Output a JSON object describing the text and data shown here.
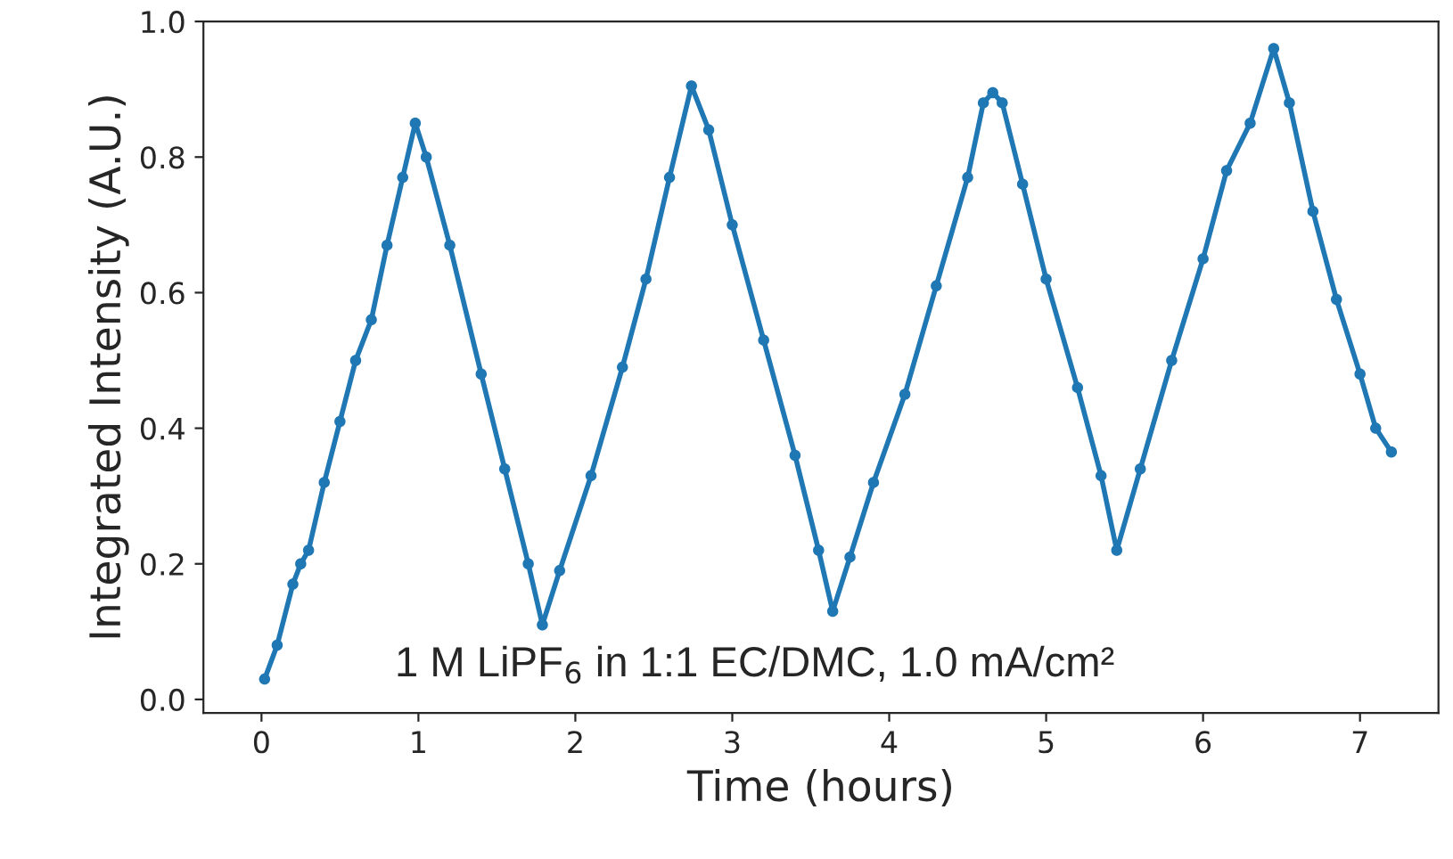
{
  "chart_data": {
    "type": "line",
    "xlabel": "Time (hours)",
    "ylabel": "Integrated Intensity (A.U.)",
    "x": [
      0.02,
      0.1,
      0.2,
      0.25,
      0.3,
      0.4,
      0.5,
      0.6,
      0.7,
      0.8,
      0.9,
      0.98,
      1.05,
      1.2,
      1.4,
      1.55,
      1.7,
      1.79,
      1.9,
      2.1,
      2.3,
      2.45,
      2.6,
      2.74,
      2.85,
      3.0,
      3.2,
      3.4,
      3.55,
      3.64,
      3.75,
      3.9,
      4.1,
      4.3,
      4.5,
      4.6,
      4.66,
      4.72,
      4.85,
      5.0,
      5.2,
      5.35,
      5.45,
      5.6,
      5.8,
      6.0,
      6.15,
      6.3,
      6.45,
      6.55,
      6.7,
      6.85,
      7.0,
      7.1,
      7.2
    ],
    "series": [
      {
        "color": "#1f77b4",
        "values": [
          0.03,
          0.08,
          0.17,
          0.2,
          0.22,
          0.32,
          0.41,
          0.5,
          0.56,
          0.67,
          0.77,
          0.85,
          0.8,
          0.67,
          0.48,
          0.34,
          0.2,
          0.11,
          0.19,
          0.33,
          0.49,
          0.62,
          0.77,
          0.905,
          0.84,
          0.7,
          0.53,
          0.36,
          0.22,
          0.13,
          0.21,
          0.32,
          0.45,
          0.61,
          0.77,
          0.88,
          0.895,
          0.88,
          0.76,
          0.62,
          0.46,
          0.33,
          0.22,
          0.34,
          0.5,
          0.65,
          0.78,
          0.85,
          0.96,
          0.88,
          0.72,
          0.59,
          0.48,
          0.4,
          0.365
        ]
      }
    ],
    "xlim": [
      -0.37,
      7.5
    ],
    "ylim": [
      -0.02,
      1.0
    ],
    "xticks": [
      0,
      1,
      2,
      3,
      4,
      5,
      6,
      7
    ],
    "yticks": [
      {
        "value": 0,
        "label": "0.0"
      },
      0.2,
      0.4,
      0.6,
      0.8,
      {
        "value": 1,
        "label": "1.0"
      }
    ],
    "marker": "circle",
    "line_style": "solid",
    "grid": false,
    "annotations": [
      "1 M LiPF$_{6}$ in 1:1 EC/DMC, 1.0 mA/cm²"
    ]
  }
}
